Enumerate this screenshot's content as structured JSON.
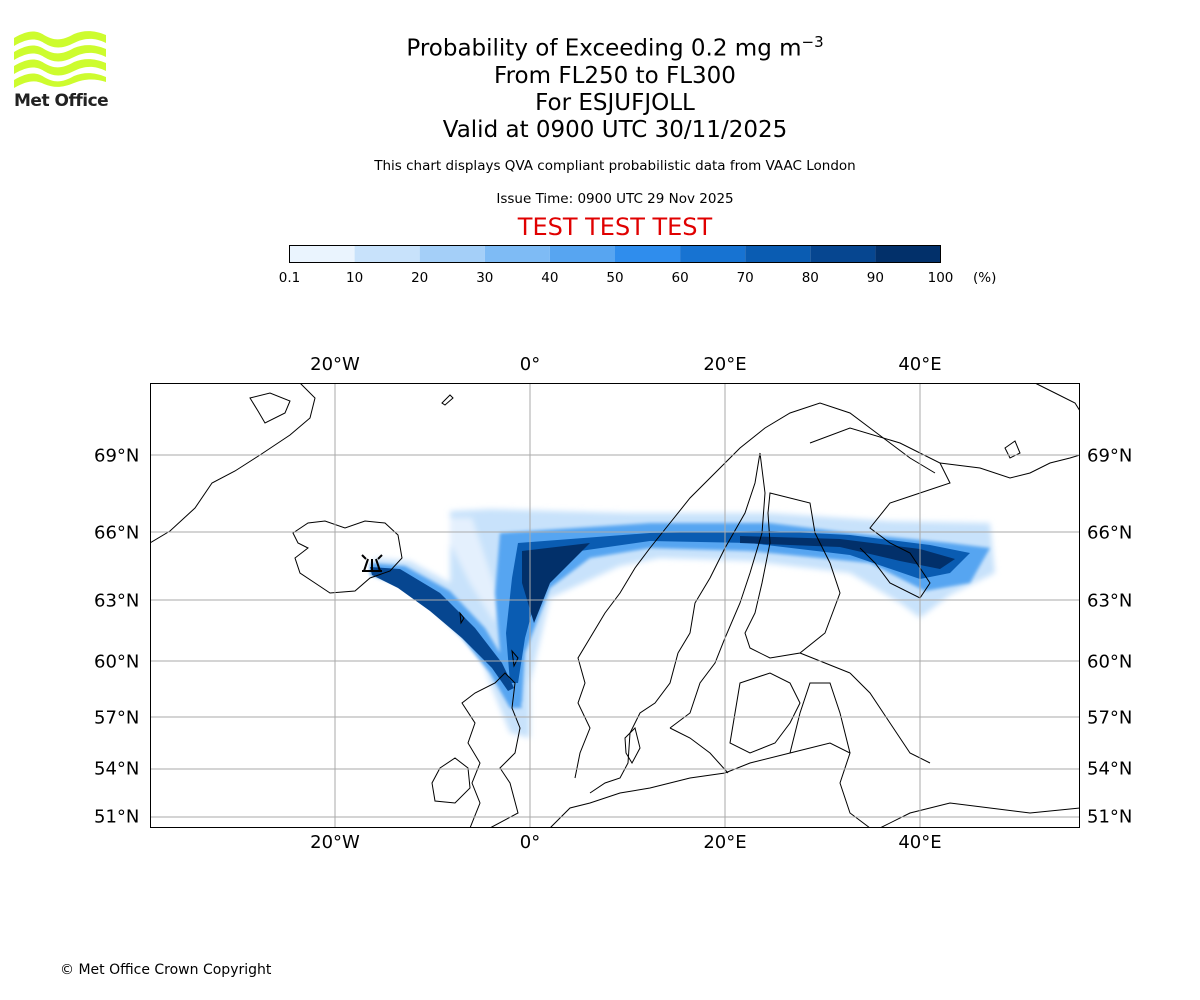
{
  "header": {
    "logo_text": "Met Office",
    "title_main": "Probability of Exceeding 0.2 mg m",
    "title_exponent": "−3",
    "title_levels": "From FL250 to FL300",
    "title_for": "For ESJUFJOLL",
    "title_valid": "Valid at 0900 UTC 30/11/2025",
    "subtitle": "This chart displays QVA compliant probabilistic data from VAAC London",
    "issue_time": "Issue Time: 0900 UTC 29 Nov 2025",
    "test_banner": "TEST TEST TEST"
  },
  "colorbar": {
    "ticks": [
      "0.1",
      "10",
      "20",
      "30",
      "40",
      "50",
      "60",
      "70",
      "80",
      "90",
      "100"
    ],
    "unit": "(%)",
    "colors": [
      "#eaf4fe",
      "#c8e2fb",
      "#a4cff8",
      "#7ebbf5",
      "#57a5f1",
      "#2f8ded",
      "#1773d2",
      "#0a5cb2",
      "#064690",
      "#02306a"
    ]
  },
  "map": {
    "lon_labels": [
      "20°W",
      "0°",
      "20°E",
      "40°E"
    ],
    "lat_labels": [
      "69°N",
      "66°N",
      "63°N",
      "60°N",
      "57°N",
      "54°N",
      "51°N"
    ],
    "gridline_color": "#aaaaaa",
    "coast_color": "#000000"
  },
  "chart_data": {
    "type": "heatmap",
    "title": "Probability of Exceeding 0.2 mg m−3",
    "quantity": "probability (%)",
    "color_levels": [
      0.1,
      10,
      20,
      30,
      40,
      50,
      60,
      70,
      80,
      90,
      100
    ],
    "lon_ticks": [
      -20,
      0,
      20,
      40
    ],
    "lat_ticks": [
      69,
      66,
      63,
      60,
      57,
      54,
      51
    ],
    "plume": [
      {
        "lon": -17,
        "lat": 64.4,
        "p": 100
      },
      {
        "lon": -12,
        "lat": 63.8,
        "p": 95
      },
      {
        "lon": -6,
        "lat": 62.2,
        "p": 95
      },
      {
        "lon": -3,
        "lat": 60.0,
        "p": 100
      },
      {
        "lon": -1.5,
        "lat": 57.5,
        "p": 95
      },
      {
        "lon": 2,
        "lat": 64.8,
        "p": 100
      },
      {
        "lon": 12,
        "lat": 65.8,
        "p": 95
      },
      {
        "lon": 24,
        "lat": 65.8,
        "p": 95
      },
      {
        "lon": 34,
        "lat": 65.2,
        "p": 95
      },
      {
        "lon": 40,
        "lat": 64.5,
        "p": 90
      }
    ]
  },
  "footer": {
    "copyright": "© Met Office Crown Copyright"
  }
}
